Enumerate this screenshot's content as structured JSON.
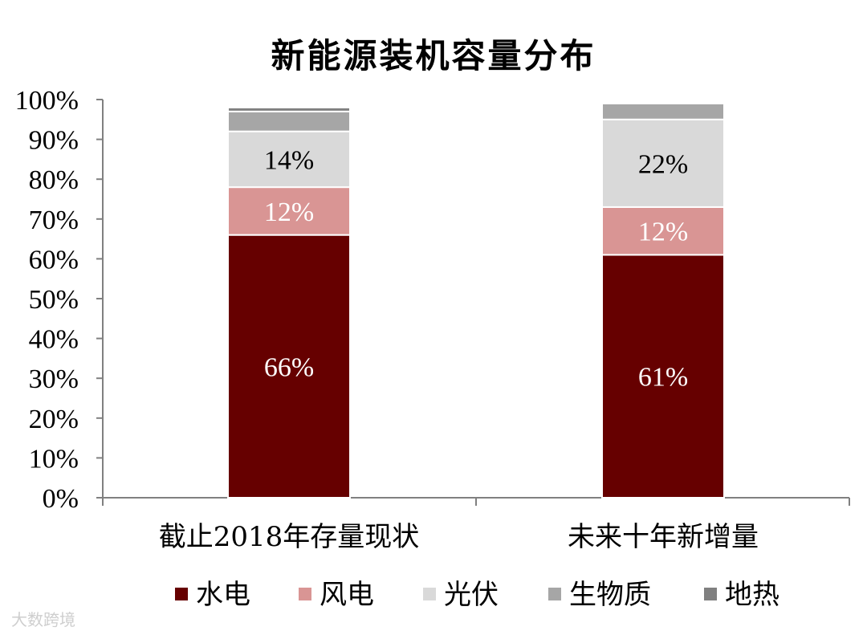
{
  "chart_data": {
    "type": "bar",
    "stacked": true,
    "title": "新能源装机容量分布",
    "categories": [
      "截止2018年存量现状",
      "未来十年新增量"
    ],
    "series": [
      {
        "name": "水电",
        "color": "#660000",
        "values": [
          66,
          61
        ]
      },
      {
        "name": "风电",
        "color": "#d99594",
        "values": [
          12,
          12
        ]
      },
      {
        "name": "光伏",
        "color": "#d9d9d9",
        "values": [
          14,
          22
        ]
      },
      {
        "name": "生物质",
        "color": "#a6a6a6",
        "values": [
          5,
          4
        ]
      },
      {
        "name": "地热",
        "color": "#808080",
        "values": [
          1,
          0
        ]
      }
    ],
    "data_labels": [
      {
        "series": 0,
        "category": 0,
        "text": "66%",
        "color": "#ffffff"
      },
      {
        "series": 1,
        "category": 0,
        "text": "12%",
        "color": "#ffffff"
      },
      {
        "series": 2,
        "category": 0,
        "text": "14%",
        "color": "#000000"
      },
      {
        "series": 0,
        "category": 1,
        "text": "61%",
        "color": "#ffffff"
      },
      {
        "series": 1,
        "category": 1,
        "text": "12%",
        "color": "#ffffff"
      },
      {
        "series": 2,
        "category": 1,
        "text": "22%",
        "color": "#000000"
      }
    ],
    "y_ticks": [
      "0%",
      "10%",
      "20%",
      "30%",
      "40%",
      "50%",
      "60%",
      "70%",
      "80%",
      "90%",
      "100%"
    ],
    "ylim": [
      0,
      100
    ],
    "xlabel": "",
    "ylabel": "",
    "grid": false,
    "legend_position": "bottom"
  },
  "watermark": "大数跨境"
}
